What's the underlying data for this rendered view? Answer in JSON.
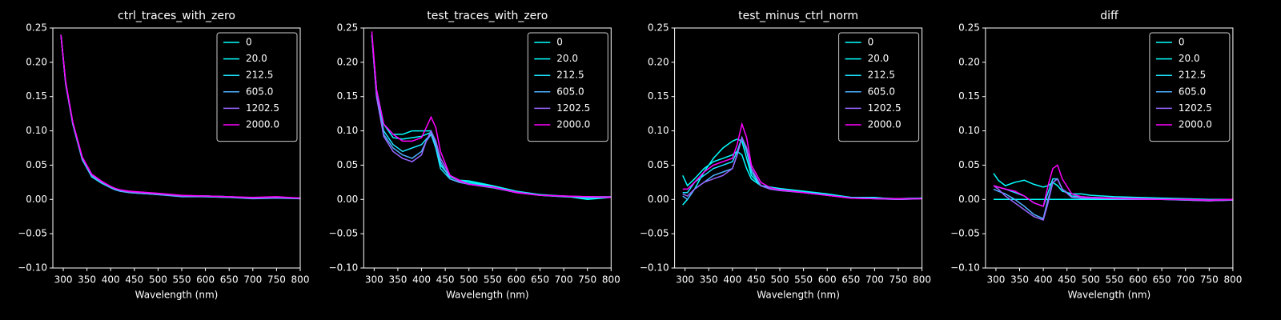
{
  "chart_data": [
    {
      "type": "line",
      "title": "ctrl_traces_with_zero",
      "xlabel": "Wavelength (nm)",
      "legend": "upper right",
      "x": [
        295,
        305,
        320,
        340,
        360,
        380,
        400,
        410,
        420,
        430,
        440,
        460,
        480,
        500,
        550,
        600,
        650,
        700,
        750,
        800
      ],
      "series": [
        {
          "name": "0",
          "color": "#00ffff",
          "values": [
            0.24,
            0.17,
            0.11,
            0.058,
            0.033,
            0.024,
            0.017,
            0.014,
            0.012,
            0.011,
            0.01,
            0.009,
            0.008,
            0.007,
            0.005,
            0.004,
            0.003,
            0.002,
            0.003,
            0.001
          ]
        },
        {
          "name": "20.0",
          "color": "#03fcff",
          "values": [
            0.24,
            0.17,
            0.11,
            0.059,
            0.034,
            0.025,
            0.018,
            0.015,
            0.013,
            0.012,
            0.011,
            0.01,
            0.009,
            0.008,
            0.005,
            0.005,
            0.004,
            0.002,
            0.003,
            0.002
          ]
        },
        {
          "name": "212.5",
          "color": "#1be4ff",
          "values": [
            0.24,
            0.17,
            0.112,
            0.06,
            0.035,
            0.026,
            0.018,
            0.015,
            0.013,
            0.012,
            0.011,
            0.01,
            0.009,
            0.008,
            0.005,
            0.005,
            0.004,
            0.002,
            0.003,
            0.002
          ]
        },
        {
          "name": "605.0",
          "color": "#4db2ff",
          "values": [
            0.24,
            0.168,
            0.11,
            0.058,
            0.034,
            0.025,
            0.017,
            0.014,
            0.012,
            0.011,
            0.01,
            0.009,
            0.008,
            0.007,
            0.004,
            0.004,
            0.003,
            0.001,
            0.002,
            0.001
          ]
        },
        {
          "name": "1202.5",
          "color": "#9966ff",
          "values": [
            0.24,
            0.17,
            0.112,
            0.061,
            0.036,
            0.026,
            0.019,
            0.016,
            0.014,
            0.012,
            0.011,
            0.01,
            0.009,
            0.008,
            0.005,
            0.005,
            0.004,
            0.002,
            0.003,
            0.002
          ]
        },
        {
          "name": "2000.0",
          "color": "#ff00ff",
          "values": [
            0.24,
            0.172,
            0.113,
            0.062,
            0.037,
            0.027,
            0.019,
            0.016,
            0.014,
            0.013,
            0.012,
            0.011,
            0.01,
            0.009,
            0.006,
            0.005,
            0.004,
            0.003,
            0.004,
            0.002
          ]
        }
      ],
      "xlim": [
        278,
        800
      ],
      "ylim": [
        -0.1,
        0.25
      ],
      "xticks": [
        300,
        350,
        400,
        450,
        500,
        550,
        600,
        650,
        700,
        750,
        800
      ],
      "yticks": [
        {
          "value": -0.1,
          "label": "−0.10"
        },
        {
          "value": -0.05,
          "label": "−0.05"
        },
        {
          "value": 0,
          "label": "0.00"
        },
        {
          "value": 0.05,
          "label": "0.05"
        },
        {
          "value": 0.1,
          "label": "0.10"
        },
        {
          "value": 0.15,
          "label": "0.15"
        },
        {
          "value": 0.2,
          "label": "0.20"
        },
        {
          "value": 0.25,
          "label": "0.25"
        }
      ]
    },
    {
      "type": "line",
      "title": "test_traces_with_zero",
      "xlabel": "Wavelength (nm)",
      "legend": "upper right",
      "x": [
        295,
        305,
        320,
        340,
        360,
        380,
        400,
        410,
        420,
        430,
        440,
        460,
        480,
        500,
        550,
        600,
        650,
        700,
        750,
        800
      ],
      "series": [
        {
          "name": "0",
          "color": "#00ffff",
          "values": [
            0.24,
            0.16,
            0.11,
            0.095,
            0.095,
            0.1,
            0.1,
            0.1,
            0.1,
            0.08,
            0.05,
            0.035,
            0.028,
            0.027,
            0.02,
            0.012,
            0.007,
            0.005,
            0.0,
            0.003
          ]
        },
        {
          "name": "20.0",
          "color": "#03fcff",
          "values": [
            0.24,
            0.16,
            0.11,
            0.09,
            0.088,
            0.09,
            0.092,
            0.095,
            0.098,
            0.08,
            0.05,
            0.033,
            0.027,
            0.025,
            0.019,
            0.011,
            0.006,
            0.005,
            0.002,
            0.003
          ]
        },
        {
          "name": "212.5",
          "color": "#1be4ff",
          "values": [
            0.24,
            0.155,
            0.1,
            0.08,
            0.07,
            0.075,
            0.08,
            0.088,
            0.095,
            0.075,
            0.045,
            0.03,
            0.025,
            0.023,
            0.018,
            0.01,
            0.006,
            0.004,
            0.003,
            0.003
          ]
        },
        {
          "name": "605.0",
          "color": "#4db2ff",
          "values": [
            0.24,
            0.15,
            0.095,
            0.075,
            0.065,
            0.06,
            0.07,
            0.085,
            0.095,
            0.08,
            0.055,
            0.03,
            0.025,
            0.022,
            0.017,
            0.01,
            0.006,
            0.004,
            0.003,
            0.003
          ]
        },
        {
          "name": "1202.5",
          "color": "#9966ff",
          "values": [
            0.24,
            0.15,
            0.092,
            0.07,
            0.06,
            0.055,
            0.065,
            0.085,
            0.1,
            0.085,
            0.06,
            0.035,
            0.026,
            0.022,
            0.018,
            0.011,
            0.006,
            0.005,
            0.004,
            0.004
          ]
        },
        {
          "name": "2000.0",
          "color": "#ff00ff",
          "values": [
            0.245,
            0.16,
            0.11,
            0.095,
            0.085,
            0.085,
            0.09,
            0.105,
            0.12,
            0.105,
            0.07,
            0.035,
            0.028,
            0.022,
            0.018,
            0.01,
            0.006,
            0.005,
            0.004,
            0.003
          ]
        }
      ],
      "xlim": [
        278,
        800
      ],
      "ylim": [
        -0.1,
        0.25
      ],
      "xticks": [
        300,
        350,
        400,
        450,
        500,
        550,
        600,
        650,
        700,
        750,
        800
      ],
      "yticks": [
        {
          "value": -0.1,
          "label": "−0.10"
        },
        {
          "value": -0.05,
          "label": "−0.05"
        },
        {
          "value": 0,
          "label": "0.00"
        },
        {
          "value": 0.05,
          "label": "0.05"
        },
        {
          "value": 0.1,
          "label": "0.10"
        },
        {
          "value": 0.15,
          "label": "0.15"
        },
        {
          "value": 0.2,
          "label": "0.20"
        },
        {
          "value": 0.25,
          "label": "0.25"
        }
      ]
    },
    {
      "type": "line",
      "title": "test_minus_ctrl_norm",
      "xlabel": "Wavelength (nm)",
      "legend": "upper right",
      "x": [
        295,
        305,
        320,
        340,
        360,
        380,
        400,
        410,
        420,
        430,
        440,
        460,
        480,
        500,
        550,
        600,
        650,
        700,
        750,
        800
      ],
      "series": [
        {
          "name": "0",
          "color": "#00ffff",
          "values": [
            -0.008,
            0.0,
            0.015,
            0.04,
            0.06,
            0.075,
            0.085,
            0.088,
            0.085,
            0.06,
            0.035,
            0.02,
            0.018,
            0.016,
            0.012,
            0.008,
            0.003,
            0.003,
            0.0,
            0.002
          ]
        },
        {
          "name": "20.0",
          "color": "#03fcff",
          "values": [
            0.035,
            0.02,
            0.03,
            0.045,
            0.055,
            0.06,
            0.065,
            0.07,
            0.065,
            0.045,
            0.03,
            0.02,
            0.017,
            0.015,
            0.011,
            0.007,
            0.003,
            0.002,
            0.001,
            0.002
          ]
        },
        {
          "name": "212.5",
          "color": "#1be4ff",
          "values": [
            0.01,
            0.01,
            0.025,
            0.035,
            0.045,
            0.05,
            0.055,
            0.07,
            0.09,
            0.07,
            0.04,
            0.02,
            0.016,
            0.014,
            0.01,
            0.006,
            0.003,
            0.002,
            0.001,
            0.002
          ]
        },
        {
          "name": "605.0",
          "color": "#4db2ff",
          "values": [
            0.005,
            0.0,
            0.015,
            0.025,
            0.035,
            0.04,
            0.045,
            0.065,
            0.09,
            0.075,
            0.045,
            0.02,
            0.015,
            0.013,
            0.01,
            0.006,
            0.002,
            0.001,
            0.0,
            0.001
          ]
        },
        {
          "name": "1202.5",
          "color": "#9966ff",
          "values": [
            0.008,
            0.005,
            0.015,
            0.025,
            0.03,
            0.035,
            0.045,
            0.065,
            0.09,
            0.075,
            0.045,
            0.02,
            0.015,
            0.013,
            0.01,
            0.006,
            0.002,
            0.001,
            0.0,
            0.001
          ]
        },
        {
          "name": "2000.0",
          "color": "#ff00ff",
          "values": [
            0.015,
            0.015,
            0.025,
            0.04,
            0.05,
            0.055,
            0.06,
            0.08,
            0.11,
            0.09,
            0.05,
            0.025,
            0.017,
            0.014,
            0.01,
            0.006,
            0.002,
            0.001,
            0.001,
            0.001
          ]
        }
      ],
      "xlim": [
        278,
        800
      ],
      "ylim": [
        -0.1,
        0.25
      ],
      "xticks": [
        300,
        350,
        400,
        450,
        500,
        550,
        600,
        650,
        700,
        750,
        800
      ],
      "yticks": [
        {
          "value": -0.1,
          "label": "−0.10"
        },
        {
          "value": -0.05,
          "label": "−0.05"
        },
        {
          "value": 0,
          "label": "0.00"
        },
        {
          "value": 0.05,
          "label": "0.05"
        },
        {
          "value": 0.1,
          "label": "0.10"
        },
        {
          "value": 0.15,
          "label": "0.15"
        },
        {
          "value": 0.2,
          "label": "0.20"
        },
        {
          "value": 0.25,
          "label": "0.25"
        }
      ]
    },
    {
      "type": "line",
      "title": "diff",
      "xlabel": "Wavelength (nm)",
      "legend": "upper right",
      "x": [
        295,
        305,
        320,
        340,
        360,
        380,
        400,
        410,
        420,
        430,
        440,
        460,
        480,
        500,
        550,
        600,
        650,
        700,
        750,
        800
      ],
      "series": [
        {
          "name": "0",
          "color": "#00ffff",
          "values": [
            0,
            0,
            0,
            0,
            0,
            0,
            0,
            0,
            0,
            0,
            0,
            0,
            0,
            0,
            0,
            0,
            0,
            0,
            0,
            0
          ]
        },
        {
          "name": "20.0",
          "color": "#03fcff",
          "values": [
            0.038,
            0.028,
            0.02,
            0.025,
            0.028,
            0.022,
            0.018,
            0.02,
            0.025,
            0.02,
            0.012,
            0.008,
            0.008,
            0.006,
            0.004,
            0.003,
            0.002,
            0.001,
            0.0,
            0.0
          ]
        },
        {
          "name": "212.5",
          "color": "#1be4ff",
          "values": [
            0.02,
            0.018,
            0.015,
            0.01,
            0.005,
            -0.005,
            -0.01,
            0.01,
            0.03,
            0.03,
            0.015,
            0.005,
            0.004,
            0.003,
            0.002,
            0.002,
            0.001,
            0.0,
            0.0,
            0.0
          ]
        },
        {
          "name": "605.0",
          "color": "#4db2ff",
          "values": [
            0.015,
            0.012,
            0.008,
            0.0,
            -0.01,
            -0.022,
            -0.028,
            0.0,
            0.025,
            0.03,
            0.015,
            0.003,
            0.002,
            0.002,
            0.001,
            0.0,
            0.0,
            -0.001,
            -0.002,
            -0.001
          ]
        },
        {
          "name": "1202.5",
          "color": "#9966ff",
          "values": [
            0.02,
            0.015,
            0.005,
            -0.005,
            -0.015,
            -0.025,
            -0.03,
            -0.005,
            0.025,
            0.03,
            0.015,
            0.003,
            0.002,
            0.002,
            0.001,
            0.0,
            0.0,
            -0.001,
            -0.002,
            -0.001
          ]
        },
        {
          "name": "2000.0",
          "color": "#ff00ff",
          "values": [
            0.02,
            0.018,
            0.015,
            0.012,
            0.005,
            -0.005,
            -0.01,
            0.02,
            0.045,
            0.05,
            0.03,
            0.008,
            0.004,
            0.003,
            0.002,
            0.001,
            0.0,
            0.0,
            -0.001,
            0.0
          ]
        }
      ],
      "xlim": [
        278,
        800
      ],
      "ylim": [
        -0.1,
        0.25
      ],
      "xticks": [
        300,
        350,
        400,
        450,
        500,
        550,
        600,
        650,
        700,
        750,
        800
      ],
      "yticks": [
        {
          "value": -0.1,
          "label": "−0.10"
        },
        {
          "value": -0.05,
          "label": "−0.05"
        },
        {
          "value": 0,
          "label": "0.00"
        },
        {
          "value": 0.05,
          "label": "0.05"
        },
        {
          "value": 0.1,
          "label": "0.10"
        },
        {
          "value": 0.15,
          "label": "0.15"
        },
        {
          "value": 0.2,
          "label": "0.20"
        },
        {
          "value": 0.25,
          "label": "0.25"
        }
      ]
    }
  ]
}
